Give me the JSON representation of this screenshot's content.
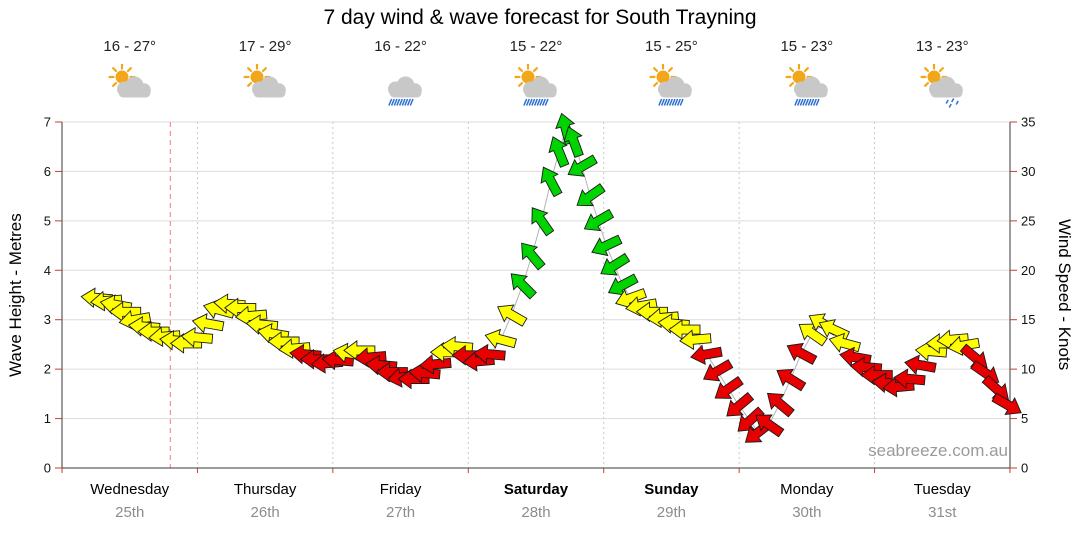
{
  "title": "7 day wind & wave forecast for South Trayning",
  "watermark": "seabreeze.com.au",
  "days": [
    {
      "name": "Wednesday",
      "date": "25th",
      "temp": "16 - 27°",
      "bold": false,
      "icon": {
        "sun": true,
        "cloud": true,
        "rain": "none"
      }
    },
    {
      "name": "Thursday",
      "date": "26th",
      "temp": "17 - 29°",
      "bold": false,
      "icon": {
        "sun": true,
        "cloud": true,
        "rain": "none"
      }
    },
    {
      "name": "Friday",
      "date": "27th",
      "temp": "16 - 22°",
      "bold": false,
      "icon": {
        "sun": false,
        "cloud": true,
        "rain": "rain"
      }
    },
    {
      "name": "Saturday",
      "date": "28th",
      "temp": "15 - 22°",
      "bold": true,
      "icon": {
        "sun": true,
        "cloud": true,
        "rain": "rain"
      }
    },
    {
      "name": "Sunday",
      "date": "29th",
      "temp": "15 - 25°",
      "bold": true,
      "icon": {
        "sun": true,
        "cloud": true,
        "rain": "rain"
      }
    },
    {
      "name": "Monday",
      "date": "30th",
      "temp": "15 - 23°",
      "bold": false,
      "icon": {
        "sun": true,
        "cloud": true,
        "rain": "rain"
      }
    },
    {
      "name": "Tuesday",
      "date": "31st",
      "temp": "13 - 23°",
      "bold": false,
      "icon": {
        "sun": true,
        "cloud": true,
        "rain": "drizzle"
      }
    }
  ],
  "colors": {
    "arrow_yellow": "#ffff00",
    "arrow_red": "#e80000",
    "arrow_green": "#00d400",
    "series_line": "#b4b4b4",
    "grid": "#dcdcdc",
    "day_separator": "#c9c9c9",
    "now_line": "#f59090",
    "axis": "#3a3a3a",
    "tick": "#cc3b2a",
    "sun": "#f2a71b",
    "cloud": "#c8c8c8",
    "rain": "#2a6fce"
  },
  "chart_data": {
    "type": "line",
    "marker": "wind-direction-arrow",
    "x_unit": "days",
    "x_range": [
      0,
      7
    ],
    "left_axis": {
      "label": "Wave Height - Metres",
      "range": [
        0,
        7
      ],
      "ticks": [
        0,
        1,
        2,
        3,
        4,
        5,
        6,
        7
      ]
    },
    "right_axis": {
      "label": "Wind Speed - Knots",
      "range": [
        0,
        35
      ],
      "ticks": [
        0,
        5,
        10,
        15,
        20,
        25,
        30,
        35
      ]
    },
    "now_marker_day": 0.8,
    "wind_points": [
      {
        "t": 0.26,
        "knots": 17.2,
        "dir": 185,
        "c": "y"
      },
      {
        "t": 0.33,
        "knots": 16.9,
        "dir": 175,
        "c": "y"
      },
      {
        "t": 0.4,
        "knots": 16.5,
        "dir": 190,
        "c": "y"
      },
      {
        "t": 0.47,
        "knots": 15.8,
        "dir": 180,
        "c": "y"
      },
      {
        "t": 0.54,
        "knots": 15.0,
        "dir": 170,
        "c": "y"
      },
      {
        "t": 0.61,
        "knots": 14.3,
        "dir": 185,
        "c": "y"
      },
      {
        "t": 0.68,
        "knots": 13.8,
        "dir": 180,
        "c": "y"
      },
      {
        "t": 0.76,
        "knots": 13.3,
        "dir": 175,
        "c": "y"
      },
      {
        "t": 0.84,
        "knots": 12.9,
        "dir": 185,
        "c": "y"
      },
      {
        "t": 0.92,
        "knots": 12.6,
        "dir": 180,
        "c": "y"
      },
      {
        "t": 1.0,
        "knots": 13.2,
        "dir": 185,
        "c": "y"
      },
      {
        "t": 1.08,
        "knots": 14.6,
        "dir": 190,
        "c": "y"
      },
      {
        "t": 1.16,
        "knots": 16.0,
        "dir": 195,
        "c": "y"
      },
      {
        "t": 1.24,
        "knots": 16.6,
        "dir": 185,
        "c": "y"
      },
      {
        "t": 1.32,
        "knots": 16.2,
        "dir": 180,
        "c": "y"
      },
      {
        "t": 1.4,
        "knots": 15.4,
        "dir": 175,
        "c": "y"
      },
      {
        "t": 1.48,
        "knots": 14.5,
        "dir": 185,
        "c": "y"
      },
      {
        "t": 1.56,
        "knots": 13.6,
        "dir": 190,
        "c": "y"
      },
      {
        "t": 1.64,
        "knots": 12.8,
        "dir": 180,
        "c": "y"
      },
      {
        "t": 1.72,
        "knots": 12.1,
        "dir": 175,
        "c": "y"
      },
      {
        "t": 1.8,
        "knots": 11.5,
        "dir": 185,
        "c": "r"
      },
      {
        "t": 1.88,
        "knots": 11.0,
        "dir": 180,
        "c": "r"
      },
      {
        "t": 1.96,
        "knots": 10.6,
        "dir": 175,
        "c": "r"
      },
      {
        "t": 2.04,
        "knots": 10.9,
        "dir": 185,
        "c": "r"
      },
      {
        "t": 2.12,
        "knots": 11.6,
        "dir": 190,
        "c": "y"
      },
      {
        "t": 2.2,
        "knots": 11.9,
        "dir": 180,
        "c": "y"
      },
      {
        "t": 2.28,
        "knots": 11.2,
        "dir": 175,
        "c": "r"
      },
      {
        "t": 2.36,
        "knots": 10.4,
        "dir": 185,
        "c": "r"
      },
      {
        "t": 2.44,
        "knots": 9.7,
        "dir": 180,
        "c": "r"
      },
      {
        "t": 2.52,
        "knots": 9.2,
        "dir": 170,
        "c": "r"
      },
      {
        "t": 2.6,
        "knots": 9.0,
        "dir": 180,
        "c": "r"
      },
      {
        "t": 2.68,
        "knots": 9.6,
        "dir": 185,
        "c": "r"
      },
      {
        "t": 2.76,
        "knots": 10.5,
        "dir": 175,
        "c": "r"
      },
      {
        "t": 2.84,
        "knots": 11.7,
        "dir": 180,
        "c": "y"
      },
      {
        "t": 2.92,
        "knots": 12.3,
        "dir": 185,
        "c": "y"
      },
      {
        "t": 3.0,
        "knots": 11.4,
        "dir": 180,
        "c": "r"
      },
      {
        "t": 3.08,
        "knots": 10.8,
        "dir": 175,
        "c": "r"
      },
      {
        "t": 3.16,
        "knots": 11.5,
        "dir": 185,
        "c": "r"
      },
      {
        "t": 3.24,
        "knots": 13.0,
        "dir": 195,
        "c": "y"
      },
      {
        "t": 3.32,
        "knots": 15.5,
        "dir": 210,
        "c": "y"
      },
      {
        "t": 3.4,
        "knots": 18.5,
        "dir": 225,
        "c": "g"
      },
      {
        "t": 3.47,
        "knots": 21.5,
        "dir": 230,
        "c": "g"
      },
      {
        "t": 3.54,
        "knots": 25.0,
        "dir": 235,
        "c": "g"
      },
      {
        "t": 3.61,
        "knots": 29.0,
        "dir": 242,
        "c": "g"
      },
      {
        "t": 3.67,
        "knots": 32.0,
        "dir": 248,
        "c": "g"
      },
      {
        "t": 3.72,
        "knots": 34.3,
        "dir": 255,
        "c": "g"
      },
      {
        "t": 3.78,
        "knots": 33.0,
        "dir": 250,
        "c": "g"
      },
      {
        "t": 3.84,
        "knots": 30.5,
        "dir": 150,
        "c": "g"
      },
      {
        "t": 3.9,
        "knots": 27.5,
        "dir": 145,
        "c": "g"
      },
      {
        "t": 3.96,
        "knots": 25.0,
        "dir": 150,
        "c": "g"
      },
      {
        "t": 4.02,
        "knots": 22.5,
        "dir": 155,
        "c": "g"
      },
      {
        "t": 4.08,
        "knots": 20.5,
        "dir": 148,
        "c": "g"
      },
      {
        "t": 4.14,
        "knots": 18.5,
        "dir": 152,
        "c": "g"
      },
      {
        "t": 4.2,
        "knots": 17.2,
        "dir": 160,
        "c": "y"
      },
      {
        "t": 4.28,
        "knots": 16.4,
        "dir": 170,
        "c": "y"
      },
      {
        "t": 4.36,
        "knots": 15.8,
        "dir": 180,
        "c": "y"
      },
      {
        "t": 4.44,
        "knots": 15.2,
        "dir": 175,
        "c": "y"
      },
      {
        "t": 4.52,
        "knots": 14.6,
        "dir": 185,
        "c": "y"
      },
      {
        "t": 4.6,
        "knots": 14.0,
        "dir": 180,
        "c": "y"
      },
      {
        "t": 4.68,
        "knots": 13.0,
        "dir": 175,
        "c": "y"
      },
      {
        "t": 4.76,
        "knots": 11.5,
        "dir": 170,
        "c": "r"
      },
      {
        "t": 4.84,
        "knots": 9.8,
        "dir": 150,
        "c": "r"
      },
      {
        "t": 4.92,
        "knots": 8.0,
        "dir": 145,
        "c": "r"
      },
      {
        "t": 5.0,
        "knots": 6.3,
        "dir": 140,
        "c": "r"
      },
      {
        "t": 5.08,
        "knots": 4.8,
        "dir": 138,
        "c": "r"
      },
      {
        "t": 5.14,
        "knots": 3.6,
        "dir": 142,
        "c": "r"
      },
      {
        "t": 5.22,
        "knots": 4.4,
        "dir": 215,
        "c": "r"
      },
      {
        "t": 5.3,
        "knots": 6.5,
        "dir": 220,
        "c": "r"
      },
      {
        "t": 5.38,
        "knots": 9.0,
        "dir": 212,
        "c": "r"
      },
      {
        "t": 5.46,
        "knots": 11.6,
        "dir": 208,
        "c": "r"
      },
      {
        "t": 5.54,
        "knots": 13.6,
        "dir": 215,
        "c": "y"
      },
      {
        "t": 5.62,
        "knots": 14.6,
        "dir": 210,
        "c": "y"
      },
      {
        "t": 5.7,
        "knots": 14.0,
        "dir": 205,
        "c": "y"
      },
      {
        "t": 5.78,
        "knots": 12.6,
        "dir": 195,
        "c": "y"
      },
      {
        "t": 5.86,
        "knots": 11.2,
        "dir": 190,
        "c": "r"
      },
      {
        "t": 5.94,
        "knots": 10.2,
        "dir": 185,
        "c": "r"
      },
      {
        "t": 6.02,
        "knots": 9.4,
        "dir": 180,
        "c": "r"
      },
      {
        "t": 6.1,
        "knots": 8.6,
        "dir": 185,
        "c": "r"
      },
      {
        "t": 6.18,
        "knots": 8.2,
        "dir": 175,
        "c": "r"
      },
      {
        "t": 6.26,
        "knots": 9.0,
        "dir": 185,
        "c": "r"
      },
      {
        "t": 6.34,
        "knots": 10.4,
        "dir": 190,
        "c": "r"
      },
      {
        "t": 6.42,
        "knots": 11.8,
        "dir": 185,
        "c": "y"
      },
      {
        "t": 6.5,
        "knots": 12.6,
        "dir": 180,
        "c": "y"
      },
      {
        "t": 6.58,
        "knots": 13.0,
        "dir": 175,
        "c": "y"
      },
      {
        "t": 6.66,
        "knots": 12.4,
        "dir": 170,
        "c": "y"
      },
      {
        "t": 6.74,
        "knots": 11.2,
        "dir": 40,
        "c": "r"
      },
      {
        "t": 6.82,
        "knots": 9.6,
        "dir": 35,
        "c": "r"
      },
      {
        "t": 6.9,
        "knots": 8.0,
        "dir": 42,
        "c": "r"
      },
      {
        "t": 6.98,
        "knots": 6.4,
        "dir": 30,
        "c": "r"
      }
    ]
  }
}
